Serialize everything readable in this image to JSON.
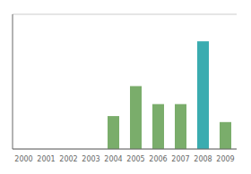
{
  "chart_data": {
    "type": "bar",
    "categories": [
      "2000",
      "2001",
      "2002",
      "2003",
      "2004",
      "2005",
      "2006",
      "2007",
      "2008",
      "2009"
    ],
    "values": [
      0,
      0,
      0,
      0,
      22,
      42,
      30,
      30,
      72,
      18
    ],
    "colors": [
      "#7aad6b",
      "#7aad6b",
      "#7aad6b",
      "#7aad6b",
      "#7aad6b",
      "#7aad6b",
      "#7aad6b",
      "#7aad6b",
      "#3aacb0",
      "#7aad6b"
    ],
    "ylim": [
      0,
      90
    ],
    "yticks": [
      0,
      20,
      40,
      60,
      80
    ],
    "grid": true,
    "tick_labels": "x"
  }
}
